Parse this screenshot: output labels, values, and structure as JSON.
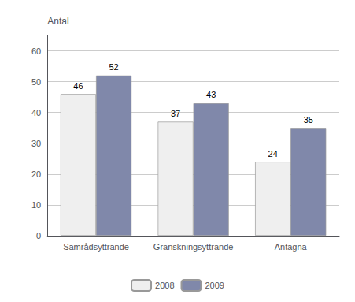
{
  "chart_data": {
    "type": "bar",
    "ylabel": "Antal",
    "categories": [
      "Samrådsyttrande",
      "Granskningsyttrande",
      "Antagna"
    ],
    "series": [
      {
        "name": "2008",
        "color": "#efefef",
        "values": [
          46,
          37,
          24
        ]
      },
      {
        "name": "2009",
        "color": "#8088aa",
        "values": [
          52,
          43,
          35
        ]
      }
    ],
    "ylim": [
      0,
      65
    ],
    "yticks": [
      0,
      10,
      20,
      30,
      40,
      50,
      60
    ],
    "grid": true,
    "legend": "bottom",
    "data_labels": true
  }
}
